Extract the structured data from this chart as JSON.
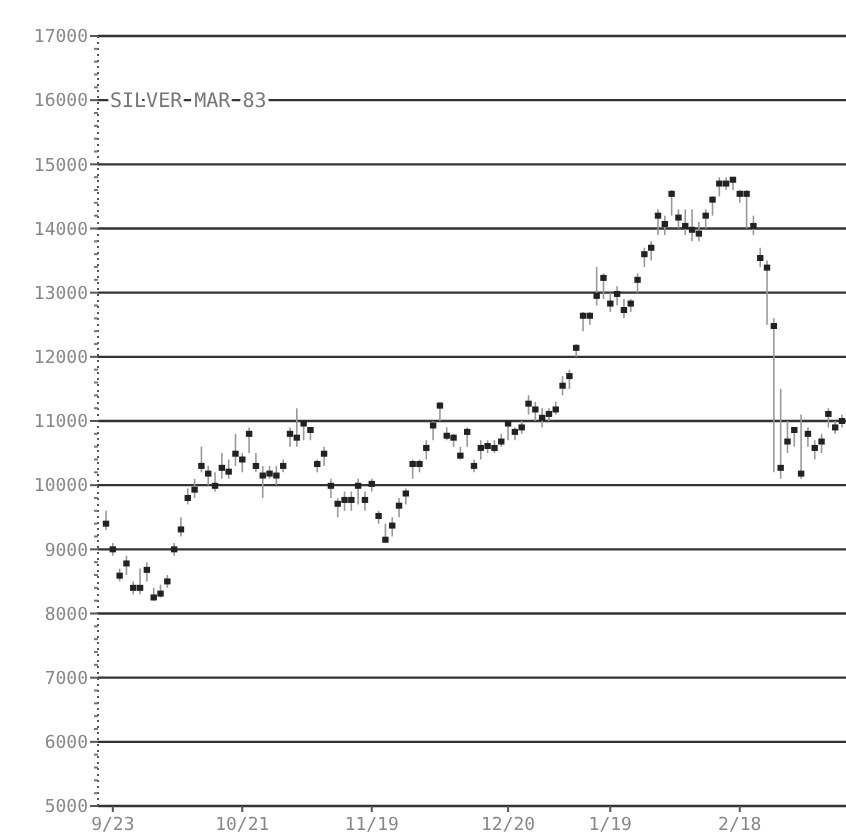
{
  "chart_data": {
    "type": "candlestick",
    "title": "SILVER MAR 83",
    "categories": [
      null,
      "9/23",
      null,
      null,
      null,
      null,
      null,
      null,
      null,
      null,
      null,
      null,
      null,
      null,
      null,
      null,
      null,
      null,
      null,
      null,
      "10/21",
      null,
      null,
      null,
      null,
      null,
      null,
      null,
      null,
      null,
      null,
      null,
      null,
      null,
      null,
      null,
      null,
      null,
      null,
      "11/19",
      null,
      null,
      null,
      null,
      null,
      null,
      null,
      null,
      null,
      null,
      null,
      null,
      null,
      null,
      null,
      null,
      null,
      null,
      null,
      "12/20",
      null,
      null,
      null,
      null,
      null,
      null,
      null,
      null,
      null,
      null,
      null,
      null,
      null,
      null,
      "1/19",
      null,
      null,
      null,
      null,
      null,
      null,
      null,
      null,
      null,
      null,
      null,
      null,
      null,
      null,
      null,
      null,
      null,
      null,
      "2/18",
      null,
      null,
      null,
      null,
      null,
      null,
      null,
      null,
      null,
      null,
      null,
      null,
      null,
      null,
      null
    ],
    "ohlc": [
      [
        9400,
        9600,
        9300,
        9400
      ],
      [
        9000,
        9100,
        8900,
        9000
      ],
      [
        8590,
        8700,
        8500,
        8590
      ],
      [
        8780,
        8900,
        8600,
        8780
      ],
      [
        8400,
        8500,
        8300,
        8400
      ],
      [
        8400,
        8700,
        8300,
        8400
      ],
      [
        8680,
        8800,
        8500,
        8680
      ],
      [
        8250,
        8400,
        8200,
        8250
      ],
      [
        8310,
        8450,
        8250,
        8310
      ],
      [
        8500,
        8600,
        8400,
        8500
      ],
      [
        9000,
        9100,
        8900,
        9000
      ],
      [
        9310,
        9500,
        9200,
        9310
      ],
      [
        9800,
        9950,
        9700,
        9800
      ],
      [
        9930,
        10100,
        9800,
        9930
      ],
      [
        10300,
        10600,
        10200,
        10300
      ],
      [
        10180,
        10300,
        10000,
        10180
      ],
      [
        9990,
        10200,
        9900,
        9990
      ],
      [
        10270,
        10500,
        10100,
        10270
      ],
      [
        10210,
        10400,
        10100,
        10210
      ],
      [
        10490,
        10800,
        10300,
        10490
      ],
      [
        10400,
        10500,
        10200,
        10400
      ],
      [
        10800,
        10900,
        10500,
        10800
      ],
      [
        10300,
        10500,
        10200,
        10300
      ],
      [
        10150,
        10300,
        9800,
        10150
      ],
      [
        10180,
        10300,
        10100,
        10180
      ],
      [
        10150,
        10300,
        10000,
        10150
      ],
      [
        10300,
        10400,
        10200,
        10300
      ],
      [
        10800,
        10900,
        10600,
        10800
      ],
      [
        10740,
        11200,
        10600,
        10740
      ],
      [
        10960,
        11000,
        10700,
        10960
      ],
      [
        10860,
        10900,
        10700,
        10860
      ],
      [
        10330,
        10400,
        10200,
        10330
      ],
      [
        10490,
        10600,
        10300,
        10490
      ],
      [
        9990,
        10100,
        9800,
        9990
      ],
      [
        9710,
        9800,
        9500,
        9710
      ],
      [
        9770,
        9900,
        9600,
        9770
      ],
      [
        9770,
        9900,
        9600,
        9770
      ],
      [
        9990,
        10100,
        9700,
        9990
      ],
      [
        9770,
        9900,
        9600,
        9770
      ],
      [
        10020,
        10100,
        9900,
        10020
      ],
      [
        9520,
        9600,
        9400,
        9520
      ],
      [
        9150,
        9400,
        9100,
        9150
      ],
      [
        9370,
        9500,
        9200,
        9370
      ],
      [
        9680,
        9800,
        9500,
        9680
      ],
      [
        9870,
        9950,
        9700,
        9870
      ],
      [
        10330,
        10400,
        10100,
        10330
      ],
      [
        10330,
        10400,
        10200,
        10330
      ],
      [
        10580,
        10700,
        10400,
        10580
      ],
      [
        10930,
        11000,
        10700,
        10930
      ],
      [
        11240,
        11300,
        11000,
        11240
      ],
      [
        10770,
        10900,
        10700,
        10770
      ],
      [
        10740,
        10800,
        10600,
        10740
      ],
      [
        10460,
        10600,
        10400,
        10460
      ],
      [
        10830,
        10900,
        10600,
        10830
      ],
      [
        10300,
        10400,
        10200,
        10300
      ],
      [
        10580,
        10700,
        10400,
        10580
      ],
      [
        10610,
        10700,
        10500,
        10610
      ],
      [
        10580,
        10700,
        10500,
        10580
      ],
      [
        10680,
        10800,
        10600,
        10680
      ],
      [
        10960,
        11000,
        10700,
        10960
      ],
      [
        10830,
        10900,
        10700,
        10830
      ],
      [
        10900,
        11000,
        10800,
        10900
      ],
      [
        11270,
        11400,
        11100,
        11270
      ],
      [
        11180,
        11300,
        11000,
        11180
      ],
      [
        11050,
        11200,
        10900,
        11050
      ],
      [
        11110,
        11200,
        11000,
        11110
      ],
      [
        11180,
        11300,
        11100,
        11180
      ],
      [
        11550,
        11700,
        11400,
        11550
      ],
      [
        11700,
        11800,
        11500,
        11700
      ],
      [
        12140,
        12200,
        12000,
        12140
      ],
      [
        12640,
        12700,
        12400,
        12640
      ],
      [
        12640,
        12700,
        12500,
        12640
      ],
      [
        12950,
        13400,
        12800,
        12950
      ],
      [
        13230,
        13300,
        12900,
        13230
      ],
      [
        12830,
        13000,
        12700,
        12830
      ],
      [
        12980,
        13100,
        12800,
        12980
      ],
      [
        12730,
        12900,
        12600,
        12730
      ],
      [
        12830,
        12900,
        12700,
        12830
      ],
      [
        13200,
        13300,
        13000,
        13200
      ],
      [
        13600,
        13700,
        13400,
        13600
      ],
      [
        13700,
        13800,
        13500,
        13700
      ],
      [
        14200,
        14300,
        13900,
        14200
      ],
      [
        14070,
        14200,
        13900,
        14070
      ],
      [
        14540,
        14600,
        14200,
        14540
      ],
      [
        14170,
        14300,
        14000,
        14170
      ],
      [
        14040,
        14300,
        13900,
        14040
      ],
      [
        13980,
        14300,
        13800,
        13980
      ],
      [
        13920,
        14100,
        13800,
        13920
      ],
      [
        14200,
        14300,
        14000,
        14200
      ],
      [
        14450,
        14500,
        14200,
        14450
      ],
      [
        14700,
        14800,
        14500,
        14700
      ],
      [
        14700,
        14800,
        14600,
        14700
      ],
      [
        14760,
        14800,
        14600,
        14760
      ],
      [
        14540,
        14600,
        14400,
        14540
      ],
      [
        14540,
        14600,
        14000,
        14540
      ],
      [
        14040,
        14200,
        13900,
        14040
      ],
      [
        13540,
        13700,
        13400,
        13540
      ],
      [
        13390,
        13500,
        12500,
        13390
      ],
      [
        12480,
        12600,
        10200,
        12480
      ],
      [
        10270,
        11500,
        10100,
        10270
      ],
      [
        10680,
        11000,
        10500,
        10680
      ],
      [
        10860,
        10900,
        10600,
        10860
      ],
      [
        10180,
        11100,
        10100,
        10180
      ],
      [
        10800,
        10900,
        10600,
        10800
      ],
      [
        10580,
        10700,
        10400,
        10580
      ],
      [
        10680,
        10800,
        10500,
        10680
      ],
      [
        11110,
        11200,
        10900,
        11110
      ],
      [
        10900,
        11000,
        10800,
        10900
      ],
      [
        11000,
        11100,
        10900,
        11000
      ]
    ],
    "ylim": [
      5000,
      17000
    ],
    "yticks": [
      5000,
      6000,
      7000,
      8000,
      9000,
      10000,
      11000,
      12000,
      13000,
      14000,
      15000,
      16000,
      17000
    ],
    "grid": "y",
    "color": "#222222"
  }
}
